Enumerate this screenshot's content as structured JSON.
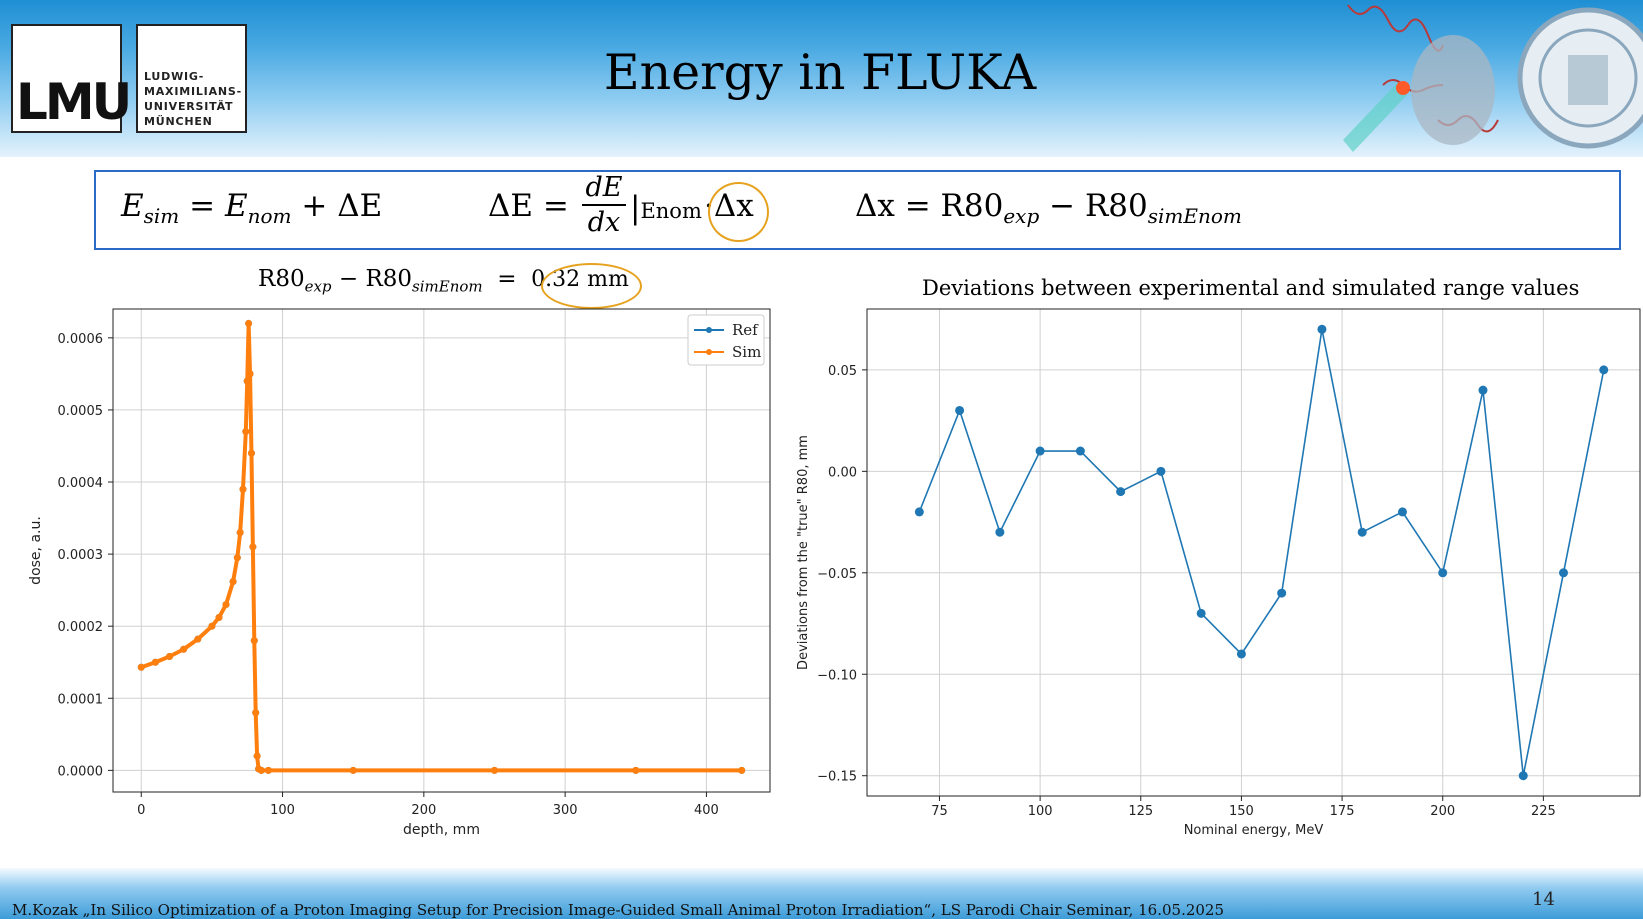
{
  "header": {
    "title": "Energy in FLUKA",
    "logo_mark": "LMU",
    "university_lines": [
      "LUDWIG-",
      "MAXIMILIANS-",
      "UNIVERSITÄT",
      "MÜNCHEN"
    ]
  },
  "formula": {
    "eq1_lhs": "E",
    "eq1_lhs_sub": "sim",
    "eq1_rhs": "E",
    "eq1_rhs_sub": "nom",
    "eq1_tail": "+ ΔE",
    "eq2_lhs": "ΔE =",
    "eq2_frac_num": "dE",
    "eq2_frac_den": "dx",
    "eq2_eval": "|",
    "eq2_eval_sub": "Enom",
    "eq2_tail": "·Δx",
    "eq3_lhs": "Δx = R80",
    "eq3_sub1": "exp",
    "eq3_mid": " − R80",
    "eq3_sub2": "simEnom"
  },
  "left_chart_heading": {
    "part1": "R80",
    "sub1": "exp",
    "part2": " − R80",
    "sub2": "simEnom",
    "part3": "  =  ",
    "value": "0.32 mm"
  },
  "colors": {
    "ref": "#1f77b4",
    "sim": "#ff7f0e",
    "accent_circle": "#e6a21f",
    "formula_border": "#2a6ac8"
  },
  "chart_data": [
    {
      "type": "line",
      "title": "",
      "xlabel": "depth, mm",
      "ylabel": "dose, a.u.",
      "xlim": [
        -20,
        445
      ],
      "ylim": [
        -3e-05,
        0.00064
      ],
      "xticks": [
        "0",
        "100",
        "200",
        "300",
        "400"
      ],
      "yticks": [
        "0.0000",
        "0.0001",
        "0.0002",
        "0.0003",
        "0.0004",
        "0.0005",
        "0.0006"
      ],
      "legend": "top-right",
      "grid": true,
      "series": [
        {
          "name": "Ref",
          "x": [
            0,
            10,
            20,
            30,
            40,
            50,
            55,
            60,
            65,
            68,
            70,
            72,
            74,
            75,
            76,
            77,
            78,
            79,
            80,
            81,
            82,
            83,
            85,
            90,
            150,
            250,
            350,
            425
          ],
          "y": [
            0.000143,
            0.00015,
            0.000158,
            0.000168,
            0.000182,
            0.0002,
            0.000212,
            0.00023,
            0.000262,
            0.000295,
            0.00033,
            0.00039,
            0.00047,
            0.00054,
            0.00062,
            0.00055,
            0.00044,
            0.00031,
            0.00018,
            8e-05,
            2e-05,
            2e-06,
            0,
            0,
            0,
            0,
            0,
            0
          ]
        },
        {
          "name": "Sim",
          "x": [
            0,
            10,
            20,
            30,
            40,
            50,
            55,
            60,
            65,
            68,
            70,
            72,
            74,
            75,
            76,
            77,
            78,
            79,
            80,
            81,
            82,
            83,
            85,
            90,
            150,
            250,
            350,
            425
          ],
          "y": [
            0.000143,
            0.00015,
            0.000158,
            0.000168,
            0.000182,
            0.0002,
            0.000212,
            0.00023,
            0.000262,
            0.000295,
            0.00033,
            0.00039,
            0.00047,
            0.00054,
            0.00062,
            0.00055,
            0.00044,
            0.00031,
            0.00018,
            8e-05,
            2e-05,
            2e-06,
            0,
            0,
            0,
            0,
            0,
            0
          ]
        }
      ]
    },
    {
      "type": "line",
      "title": "Deviations between experimental and simulated range values",
      "xlabel": "Nominal energy, MeV",
      "ylabel": "Deviations from the \"true\" R80, mm",
      "xlim": [
        57,
        249
      ],
      "ylim": [
        -0.16,
        0.08
      ],
      "xticks": [
        "75",
        "100",
        "125",
        "150",
        "175",
        "200",
        "225"
      ],
      "yticks": [
        "0.05",
        "0.00",
        "−0.05",
        "−0.10",
        "−0.15"
      ],
      "grid": true,
      "series": [
        {
          "x": [
            70,
            80,
            90,
            100,
            110,
            120,
            130,
            140,
            150,
            160,
            170,
            180,
            190,
            200,
            210,
            220,
            230,
            240
          ],
          "y": [
            -0.02,
            0.03,
            -0.03,
            0.01,
            0.01,
            -0.01,
            0.0,
            -0.07,
            -0.09,
            -0.06,
            0.07,
            -0.03,
            -0.02,
            -0.05,
            0.04,
            -0.15,
            -0.05,
            0.05
          ]
        }
      ]
    }
  ],
  "footer": {
    "text": "M.Kozak „In Silico Optimization of a Proton Imaging Setup for Precision Image-Guided Small Animal Proton Irradiation“, LS Parodi Chair Seminar, 16.05.2025",
    "page_number": "14"
  }
}
